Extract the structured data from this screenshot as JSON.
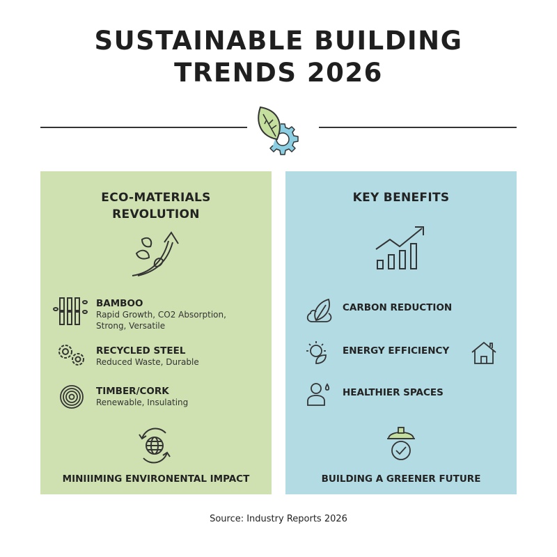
{
  "title": {
    "line1": "SUSTAINABLE BUILDING",
    "line2": "TRENDS 2026"
  },
  "colors": {
    "green_panel": "#cfe1b1",
    "blue_panel": "#b3dbe3",
    "leaf": "#c5df9f",
    "gear": "#8ccfe3"
  },
  "eco": {
    "heading_line1": "ECO-MATERIALS",
    "heading_line2": "REVOLUTION",
    "items": [
      {
        "icon": "bamboo-icon",
        "title": "BAMBOO",
        "desc_line1": "Rapid Growth, CO2 Absorption,",
        "desc_line2": "Strong, Versatile"
      },
      {
        "icon": "gears-icon",
        "title": "RECYCLED STEEL",
        "desc_line1": "Reduced Waste, Durable"
      },
      {
        "icon": "tree-rings-icon",
        "title": "TIMBER/CORK",
        "desc_line1": "Renewable, Insulating"
      }
    ],
    "footer": "MINIIIMING ENVIRONENTAL IMPACT"
  },
  "benefits": {
    "heading": "KEY BENEFITS",
    "items": [
      {
        "icon": "leaf-cloud-icon",
        "label": "CARBON REDUCTION"
      },
      {
        "icon": "sun-leaf-icon",
        "label": "ENERGY EFFICIENCY"
      },
      {
        "icon": "person-drop-icon",
        "label": "HEALTHIER SPACES"
      }
    ],
    "footer": "BUILDING A GREENER FUTURE"
  },
  "source": "Source: Industry Reports 2026"
}
